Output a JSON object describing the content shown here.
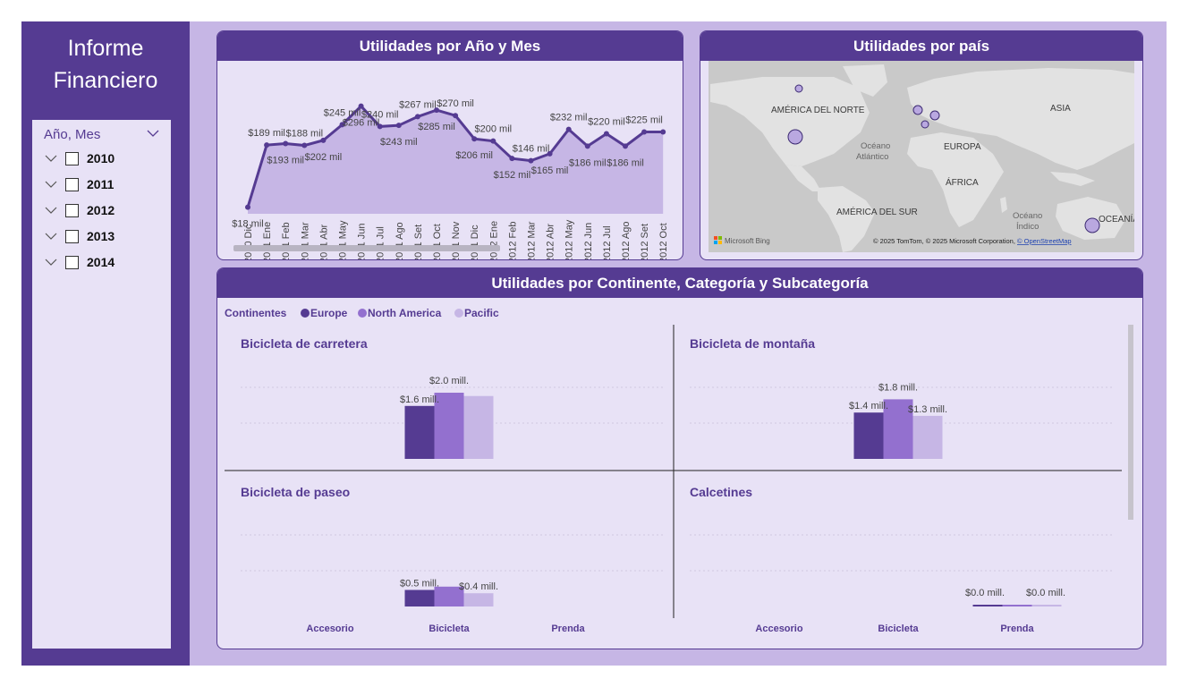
{
  "sidebar": {
    "title_line1": "Informe",
    "title_line2": "Financiero",
    "slicer": {
      "header": "Año, Mes",
      "years": [
        "2010",
        "2011",
        "2012",
        "2013",
        "2014"
      ]
    }
  },
  "line_chart": {
    "title": "Utilidades por Año y Mes",
    "chart_data": {
      "type": "line",
      "categories": [
        "2010 Dic",
        "2011 Ene",
        "2011 Feb",
        "2011 Mar",
        "2011 Abr",
        "2011 May",
        "2011 Jun",
        "2011 Jul",
        "2011 Ago",
        "2011 Set",
        "2011 Oct",
        "2011 Nov",
        "2011 Dic",
        "2012 Ene",
        "2012 Feb",
        "2012 Mar",
        "2012 Abr",
        "2012 May",
        "2012 Jun",
        "2012 Jul",
        "2012 Ago",
        "2012 Set",
        "2012 Oct"
      ],
      "values": [
        18,
        189,
        193,
        188,
        202,
        245,
        296,
        240,
        243,
        267,
        285,
        270,
        206,
        200,
        152,
        146,
        165,
        232,
        186,
        220,
        186,
        225,
        225
      ],
      "labels": [
        "$18 mil",
        "$189 mil",
        "$193 mil",
        "$188 mil",
        "$202 mil",
        "$245 mil",
        "$296 mil",
        "$240 mil",
        "$243 mil",
        "$267 mil",
        "$285 mil",
        "$270 mil",
        "$206 mil",
        "$200 mil",
        "$152 mil",
        "$146 mil",
        "$165 mil",
        "$232 mil",
        "$186 mil",
        "$220 mil",
        "$186 mil",
        "$225 mil",
        ""
      ],
      "color": "#553b92",
      "area_color": "#c6b6e5"
    }
  },
  "map": {
    "title": "Utilidades por país",
    "labels": {
      "north_america": "AMÉRICA DEL NORTE",
      "europe": "EUROPA",
      "asia": "ASIA",
      "atlantic_1": "Océano",
      "atlantic_2": "Atlántico",
      "africa": "ÁFRICA",
      "south_america": "AMÉRICA DEL SUR",
      "indian_1": "Océano",
      "indian_2": "Índico",
      "oceania": "OCEANÍA"
    },
    "bing": "Microsoft Bing",
    "attribution": "© 2025 TomTom, © 2025 Microsoft Corporation, ",
    "osm": "© OpenStreetMap",
    "bubble_color": "#b9a8e0"
  },
  "small_multiples": {
    "title": "Utilidades por Continente, Categoría y Subcategoría",
    "legend_title": "Continentes",
    "series": [
      {
        "name": "Europe",
        "color": "#553b92"
      },
      {
        "name": "North America",
        "color": "#9370cf"
      },
      {
        "name": "Pacific",
        "color": "#c6b6e5"
      }
    ],
    "categories": [
      "Accesorio",
      "Bicicleta",
      "Prenda"
    ],
    "chart_data": [
      {
        "type": "bar",
        "title": "Bicicleta de carretera",
        "categories": [
          "Accesorio",
          "Bicicleta",
          "Prenda"
        ],
        "series": [
          {
            "name": "Europe",
            "values": [
              0,
              1.6,
              0
            ]
          },
          {
            "name": "North America",
            "values": [
              0,
              2.0,
              0
            ]
          },
          {
            "name": "Pacific",
            "values": [
              0,
              1.9,
              0
            ]
          }
        ],
        "labels": [
          "$1.6 mill.",
          "$2.0 mill.",
          ""
        ]
      },
      {
        "type": "bar",
        "title": "Bicicleta de montaña",
        "categories": [
          "Accesorio",
          "Bicicleta",
          "Prenda"
        ],
        "series": [
          {
            "name": "Europe",
            "values": [
              0,
              1.4,
              0
            ]
          },
          {
            "name": "North America",
            "values": [
              0,
              1.8,
              0
            ]
          },
          {
            "name": "Pacific",
            "values": [
              0,
              1.3,
              0
            ]
          }
        ],
        "labels": [
          "$1.4 mill.",
          "$1.8 mill.",
          "$1.3 mill."
        ]
      },
      {
        "type": "bar",
        "title": "Bicicleta de paseo",
        "categories": [
          "Accesorio",
          "Bicicleta",
          "Prenda"
        ],
        "series": [
          {
            "name": "Europe",
            "values": [
              0,
              0.5,
              0
            ]
          },
          {
            "name": "North America",
            "values": [
              0,
              0.6,
              0
            ]
          },
          {
            "name": "Pacific",
            "values": [
              0,
              0.4,
              0
            ]
          }
        ],
        "labels": [
          "$0.5 mill.",
          "",
          "$0.4 mill."
        ]
      },
      {
        "type": "bar",
        "title": "Calcetines",
        "categories": [
          "Accesorio",
          "Bicicleta",
          "Prenda"
        ],
        "series": [
          {
            "name": "Europe",
            "values": [
              0,
              0,
              0.02
            ]
          },
          {
            "name": "North America",
            "values": [
              0,
              0,
              0.02
            ]
          },
          {
            "name": "Pacific",
            "values": [
              0,
              0,
              0.02
            ]
          }
        ],
        "labels": [
          "$0.0 mill.",
          "$0.0 mill."
        ]
      }
    ]
  }
}
